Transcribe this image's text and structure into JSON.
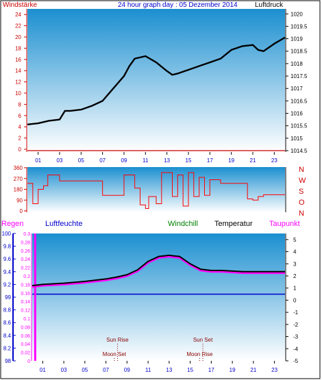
{
  "colors": {
    "plot_top": "#1b8fd0",
    "plot_bottom": "#ffffff",
    "wind_axis": "#cc0000",
    "pressure_axis": "#000000",
    "dir_line": "#ff0000",
    "rain_axis": "#ff00ff",
    "hum_axis": "#0000cc",
    "temp_line": "#000000",
    "dew_line": "#ff00ff",
    "windchill": "#008000",
    "blue_line": "#0000cc",
    "sun_label": "#8b0000",
    "moon_label": "#8b0000"
  },
  "chart_data": [
    {
      "type": "line",
      "id": "pressure",
      "title": "24 hour graph day : 05 Dezember 2014",
      "left_label": "Windstärke",
      "right_label": "Luftdruck",
      "left_ticks": [
        "0",
        "2",
        "4",
        "6",
        "8",
        "10",
        "12",
        "14",
        "16",
        "18",
        "20",
        "22",
        "24"
      ],
      "right_ticks": [
        "1014.5",
        "1015",
        "1015.5",
        "1016",
        "1016.5",
        "1017",
        "1017.5",
        "1018",
        "1018.5",
        "1019",
        "1019.5",
        "1020"
      ],
      "x_ticks": [
        "01",
        "03",
        "05",
        "07",
        "09",
        "11",
        "13",
        "15",
        "17",
        "19",
        "21",
        "23"
      ],
      "xlim": [
        0,
        24
      ],
      "left_ylim": [
        0,
        25
      ],
      "right_ylim": [
        1014.5,
        1020.2
      ],
      "wind_speed": {
        "x": [
          0,
          24
        ],
        "y": [
          0,
          0
        ]
      },
      "pressure": {
        "x": [
          0,
          1,
          2,
          3,
          3.5,
          4,
          5,
          6,
          7,
          8,
          9,
          9.5,
          10,
          11,
          12,
          13,
          13.5,
          14,
          15,
          16,
          17,
          18,
          19,
          20,
          21,
          21.5,
          22,
          23,
          24
        ],
        "y": [
          1015.55,
          1015.6,
          1015.7,
          1015.75,
          1016.1,
          1016.1,
          1016.15,
          1016.3,
          1016.5,
          1017.0,
          1017.5,
          1017.9,
          1018.2,
          1018.3,
          1018.05,
          1017.7,
          1017.55,
          1017.6,
          1017.75,
          1017.9,
          1018.05,
          1018.2,
          1018.55,
          1018.7,
          1018.75,
          1018.55,
          1018.5,
          1018.8,
          1019.05
        ]
      }
    },
    {
      "type": "line",
      "id": "wind_direction",
      "left_ticks": [
        "0",
        "90",
        "180",
        "270",
        "360"
      ],
      "right_labels": [
        "N",
        "W",
        "S",
        "O",
        "N"
      ],
      "xlim": [
        0,
        24
      ],
      "ylim": [
        0,
        360
      ],
      "direction": {
        "x": [
          0,
          0.5,
          1,
          1.5,
          1.9,
          2.3,
          3,
          3.5,
          4,
          6,
          7,
          8,
          8.8,
          9,
          9.2,
          10,
          10.5,
          11,
          11.3,
          12,
          12.5,
          13,
          13.5,
          14,
          14.5,
          15,
          15.5,
          16,
          16.5,
          17,
          18,
          19,
          20,
          20.5,
          21,
          21.5,
          22,
          23,
          24
        ],
        "y": [
          230,
          60,
          180,
          210,
          300,
          300,
          250,
          250,
          250,
          250,
          130,
          130,
          130,
          300,
          300,
          190,
          50,
          20,
          120,
          60,
          320,
          320,
          120,
          300,
          40,
          320,
          120,
          280,
          130,
          260,
          230,
          230,
          230,
          100,
          90,
          120,
          135,
          135,
          135
        ]
      }
    },
    {
      "type": "line",
      "id": "temperature",
      "series_labels": {
        "rain": "Regen",
        "humidity": "Luftfeuchte",
        "windchill": "Windchill",
        "temperature": "Temperatur",
        "dewpoint": "Taupunkt"
      },
      "hum_ticks": [
        "98",
        "8.2",
        "8.4",
        "8.6",
        "8.8",
        "99",
        "9.2",
        "9.4",
        "9.6",
        "9.8",
        "100"
      ],
      "rain_ticks": [
        "0",
        "0.02",
        "0.04",
        "0.06",
        "0.08",
        "0.1",
        "0.12",
        "0.14",
        "0.16",
        "0.18",
        "0.2",
        "0.22",
        "0.24",
        "0.26",
        "0.28",
        "0.3"
      ],
      "temp_ticks": [
        "5",
        "4",
        "3",
        "2",
        "1",
        "0",
        "-1",
        "-2",
        "-3",
        "-4",
        "-5"
      ],
      "x_ticks": [
        "01",
        "03",
        "05",
        "07",
        "09",
        "11",
        "13",
        "15",
        "17",
        "19",
        "21",
        "23"
      ],
      "xlim": [
        0,
        24
      ],
      "temp_ylim": [
        -5,
        5.5
      ],
      "rain_ylim": [
        0,
        0.3
      ],
      "temperature": {
        "x": [
          0,
          1,
          2,
          3,
          5,
          7,
          8,
          9,
          10,
          11,
          12,
          13,
          14,
          15,
          16,
          17,
          18,
          19,
          20,
          21,
          22,
          23,
          24
        ],
        "y": [
          1.2,
          1.3,
          1.35,
          1.4,
          1.55,
          1.75,
          1.9,
          2.1,
          2.5,
          3.2,
          3.6,
          3.7,
          3.6,
          3.0,
          2.55,
          2.45,
          2.45,
          2.4,
          2.35,
          2.35,
          2.35,
          2.35,
          2.35
        ]
      },
      "dewpoint": {
        "x": [
          0,
          1,
          2,
          3,
          5,
          7,
          8,
          9,
          10,
          11,
          12,
          13,
          14,
          15,
          16,
          17,
          18,
          19,
          20,
          21,
          22,
          23,
          24
        ],
        "y": [
          1.1,
          1.2,
          1.25,
          1.3,
          1.45,
          1.65,
          1.8,
          2.0,
          2.4,
          3.1,
          3.5,
          3.6,
          3.5,
          2.9,
          2.45,
          2.35,
          2.35,
          2.3,
          2.25,
          2.25,
          2.25,
          2.25,
          2.25
        ]
      },
      "humidity_level": 0.45,
      "rain": {
        "x": [
          0.05,
          0.5
        ],
        "y": [
          0.3,
          0.3
        ]
      },
      "astro": {
        "sun_rise": "Sun Rise",
        "sun_set": "Sun Set",
        "moon_set": "Moon Set",
        "moon_rise": "Moon Rise",
        "sun_rise_x": 8.1,
        "sun_set_x": 16.2,
        "moon_set_x": 7.8,
        "moon_rise_x": 15.9
      }
    }
  ]
}
